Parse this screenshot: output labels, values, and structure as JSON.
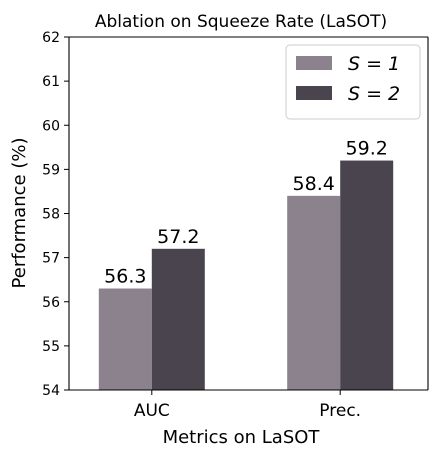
{
  "chart_data": {
    "type": "bar",
    "title": "Ablation on Squeeze Rate (LaSOT)",
    "xlabel": "Metrics on LaSOT",
    "ylabel": "Performance (%)",
    "ylim": [
      54,
      62
    ],
    "yticks": [
      "54",
      "55",
      "56",
      "57",
      "58",
      "59",
      "60",
      "61",
      "62"
    ],
    "categories": [
      "AUC",
      "Prec."
    ],
    "series": [
      {
        "name": "S = 1",
        "values": [
          56.3,
          58.4
        ],
        "labels": [
          "56.3",
          "58.4"
        ],
        "color": "#8c828e"
      },
      {
        "name": "S = 2",
        "values": [
          57.2,
          59.2
        ],
        "labels": [
          "57.2",
          "59.2"
        ],
        "color": "#49444d"
      }
    ],
    "grid": false,
    "legend": "top-right"
  }
}
